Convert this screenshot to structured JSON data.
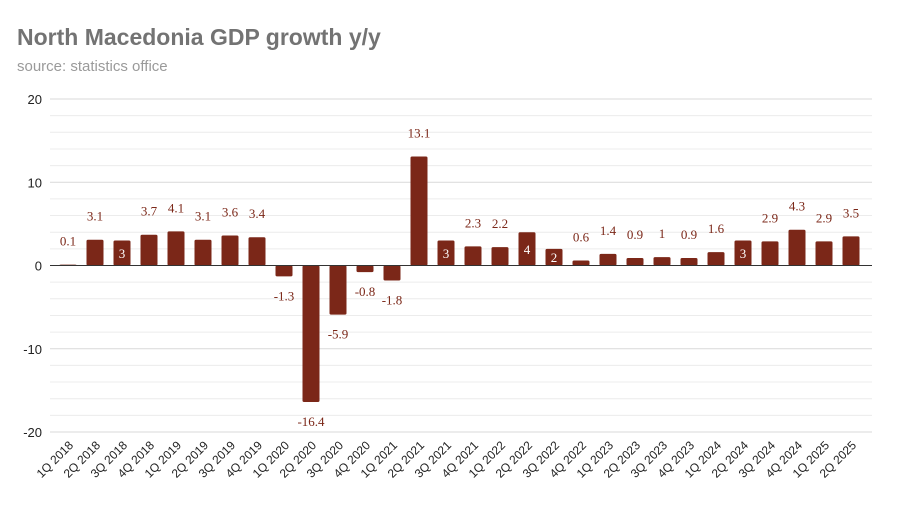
{
  "chart_data": {
    "type": "bar",
    "title": "North Macedonia GDP growth y/y",
    "subtitle": "source: statistics office",
    "xlabel": "",
    "ylabel": "",
    "ylim": [
      -20,
      20
    ],
    "yticks": [
      20,
      10,
      0,
      -10,
      -20
    ],
    "grid": true,
    "bar_color": "#7b2718",
    "label_color": "#7b2718",
    "categories": [
      "1Q 2018",
      "2Q 2018",
      "3Q 2018",
      "4Q 2018",
      "1Q 2019",
      "2Q 2019",
      "3Q 2019",
      "4Q 2019",
      "1Q 2020",
      "2Q 2020",
      "3Q 2020",
      "4Q 2020",
      "1Q 2021",
      "2Q 2021",
      "3Q 2021",
      "4Q 2021",
      "1Q 2022",
      "2Q 2022",
      "3Q 2022",
      "4Q 2022",
      "1Q 2023",
      "2Q 2023",
      "3Q 2023",
      "4Q 2023",
      "1Q 2024",
      "2Q 2024",
      "3Q 2024",
      "4Q 2024",
      "1Q 2025",
      "2Q 2025"
    ],
    "values": [
      0.1,
      3.1,
      3,
      3.7,
      4.1,
      3.1,
      3.6,
      3.4,
      -1.3,
      -16.4,
      -5.9,
      -0.8,
      -1.8,
      13.1,
      3,
      2.3,
      2.2,
      4,
      2,
      0.6,
      1.4,
      0.9,
      1,
      0.9,
      1.6,
      3,
      2.9,
      4.3,
      2.9,
      3.5
    ],
    "labels_inside": [
      "3Q 2018",
      "3Q 2021",
      "2Q 2022",
      "3Q 2022",
      "2Q 2024"
    ]
  }
}
